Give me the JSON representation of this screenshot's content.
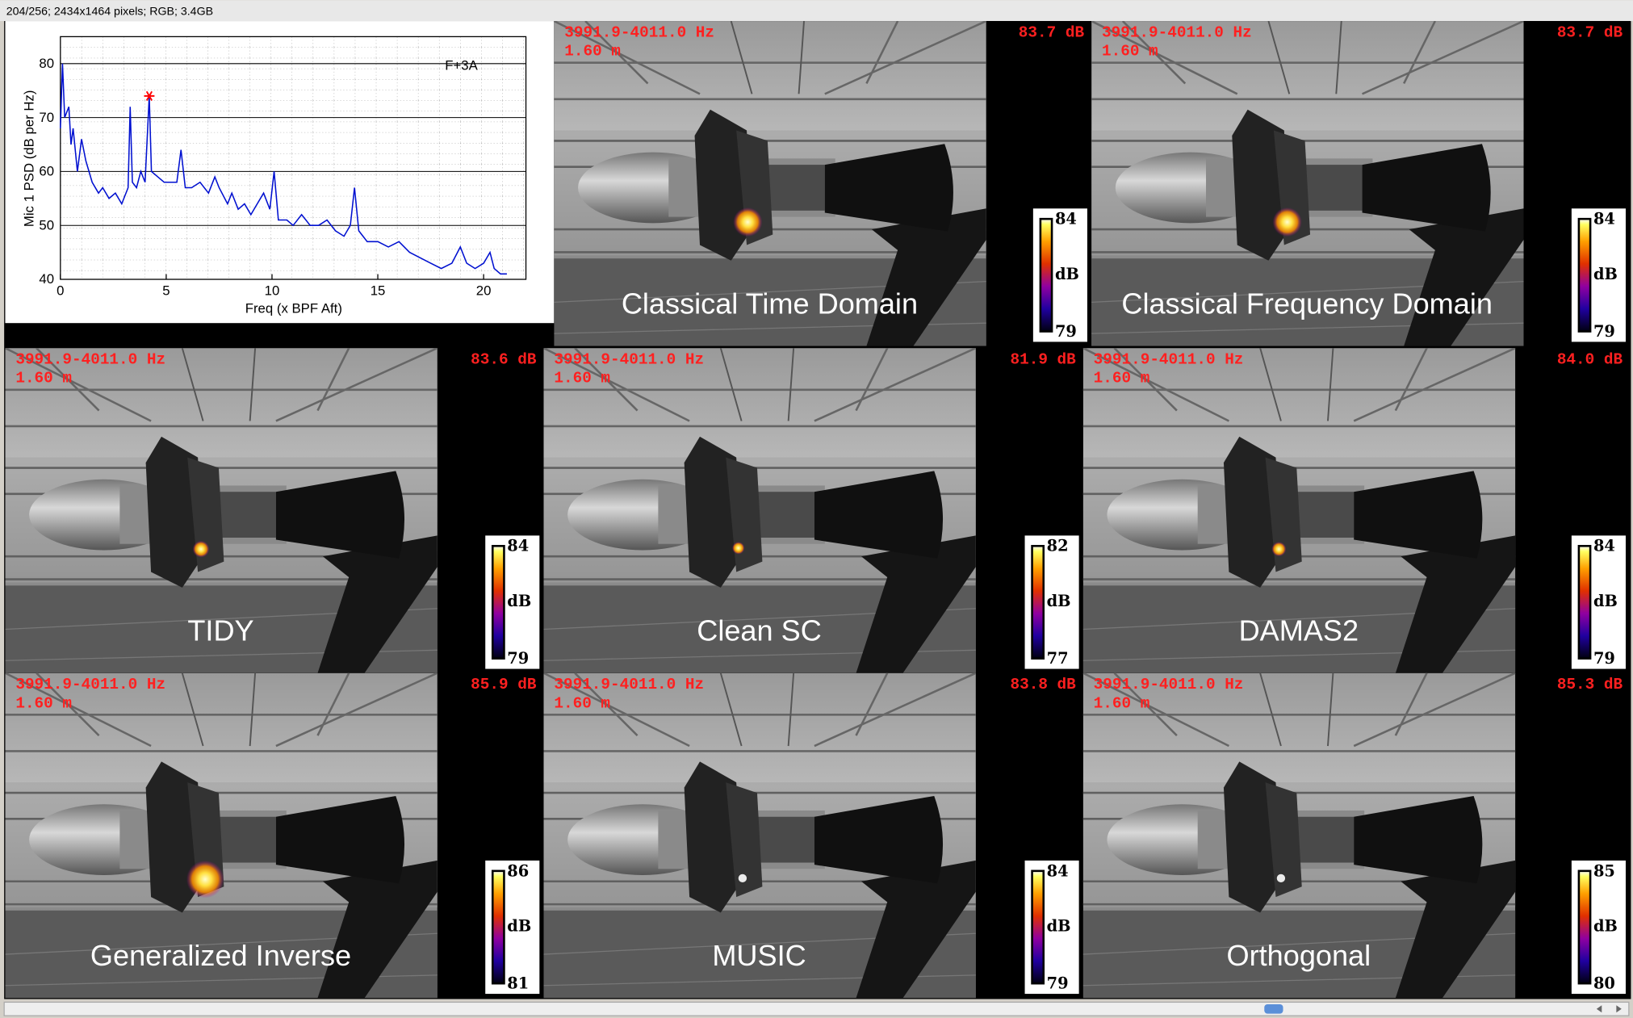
{
  "status": "204/256; 2434x1464 pixels; RGB; 3.4GB",
  "chart_data": {
    "type": "line",
    "xlabel": "Freq (x BPF Aft)",
    "ylabel": "Mic 1 PSD (dB per Hz)",
    "annotation": "F+3A",
    "xlim": [
      0,
      22
    ],
    "ylim": [
      40,
      85
    ],
    "xticks": [
      0,
      5,
      10,
      15,
      20
    ],
    "yticks": [
      40,
      50,
      60,
      70,
      80
    ],
    "color": "#0010d0",
    "x": [
      0,
      0.1,
      0.2,
      0.4,
      0.5,
      0.6,
      0.8,
      1,
      1.2,
      1.5,
      1.8,
      2,
      2.3,
      2.6,
      2.9,
      3.2,
      3.3,
      3.4,
      3.6,
      3.8,
      4.0,
      4.2,
      4.3,
      4.6,
      4.9,
      5.2,
      5.5,
      5.7,
      5.9,
      6.2,
      6.6,
      7,
      7.3,
      7.5,
      7.9,
      8.1,
      8.4,
      8.7,
      9,
      9.3,
      9.6,
      9.9,
      10.1,
      10.3,
      10.7,
      11,
      11.4,
      11.8,
      12.2,
      12.6,
      13,
      13.4,
      13.7,
      13.9,
      14.1,
      14.5,
      15,
      15.5,
      16,
      16.5,
      17,
      17.5,
      18,
      18.5,
      18.9,
      19.2,
      19.6,
      20,
      20.3,
      20.5,
      20.8,
      21.1
    ],
    "values": [
      68,
      80,
      70,
      72,
      65,
      68,
      60,
      66,
      62,
      58,
      56,
      57,
      55,
      56,
      54,
      57,
      72,
      58,
      57,
      60,
      58,
      74,
      60,
      59,
      58,
      58,
      58,
      64,
      57,
      57,
      58,
      56,
      59,
      57,
      54,
      56,
      53,
      54,
      52,
      54,
      56,
      53,
      60,
      51,
      51,
      50,
      52,
      50,
      50,
      51,
      49,
      48,
      50,
      57,
      49,
      47,
      47,
      46,
      47,
      45,
      44,
      43,
      42,
      43,
      46,
      43,
      42,
      43,
      45,
      42,
      41,
      41
    ],
    "highlight": {
      "x": 4.2,
      "y": 74,
      "color": "#ff0000"
    }
  },
  "panels": [
    {
      "frequency": "3991.9-4011.0 Hz",
      "distance": "1.60 m",
      "level": "83.7 dB",
      "method": "Classical Time Domain",
      "colorbar": {
        "max": 84,
        "unit": "dB",
        "min": 79
      }
    },
    {
      "frequency": "3991.9-4011.0 Hz",
      "distance": "1.60 m",
      "level": "83.7 dB",
      "method": "Classical Frequency Domain",
      "colorbar": {
        "max": 84,
        "unit": "dB",
        "min": 79
      }
    },
    {
      "frequency": "3991.9-4011.0 Hz",
      "distance": "1.60 m",
      "level": "83.6 dB",
      "method": "TIDY",
      "colorbar": {
        "max": 84,
        "unit": "dB",
        "min": 79
      }
    },
    {
      "frequency": "3991.9-4011.0 Hz",
      "distance": "1.60 m",
      "level": "81.9 dB",
      "method": "Clean SC",
      "colorbar": {
        "max": 82,
        "unit": "dB",
        "min": 77
      }
    },
    {
      "frequency": "3991.9-4011.0 Hz",
      "distance": "1.60 m",
      "level": "84.0 dB",
      "method": "DAMAS2",
      "colorbar": {
        "max": 84,
        "unit": "dB",
        "min": 79
      }
    },
    {
      "frequency": "3991.9-4011.0 Hz",
      "distance": "1.60 m",
      "level": "85.9 dB",
      "method": "Generalized Inverse",
      "colorbar": {
        "max": 86,
        "unit": "dB",
        "min": 81
      }
    },
    {
      "frequency": "3991.9-4011.0 Hz",
      "distance": "1.60 m",
      "level": "83.8 dB",
      "method": "MUSIC",
      "colorbar": {
        "max": 84,
        "unit": "dB",
        "min": 79
      }
    },
    {
      "frequency": "3991.9-4011.0 Hz",
      "distance": "1.60 m",
      "level": "85.3 dB",
      "method": "Orthogonal",
      "colorbar": {
        "max": 85,
        "unit": "dB",
        "min": 80
      }
    }
  ]
}
